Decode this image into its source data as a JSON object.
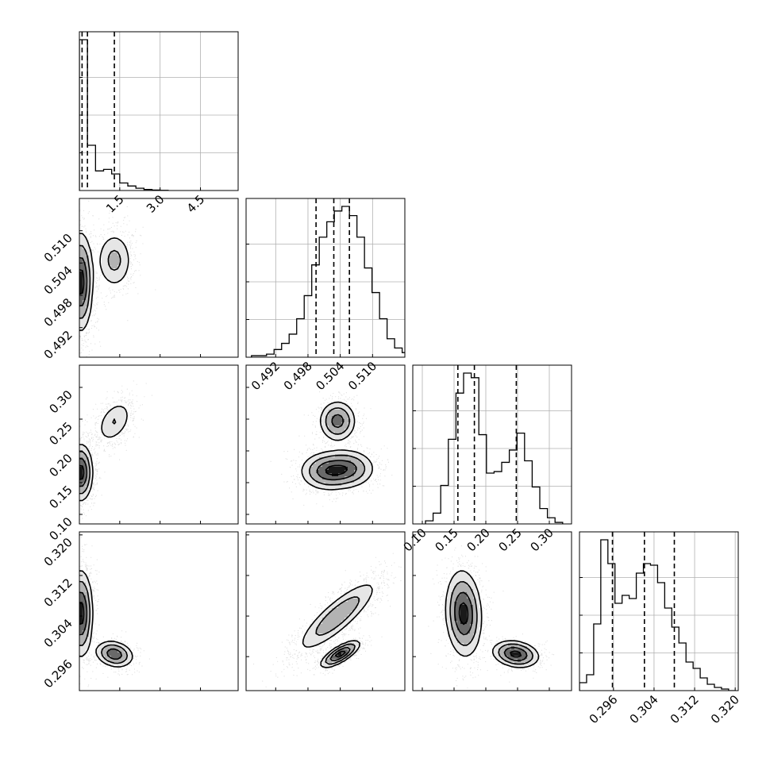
{
  "chart_data": {
    "type": "corner",
    "title": "",
    "n_params": 4,
    "params": [
      {
        "xlim": [
          0,
          5.9
        ],
        "ticks": [
          1.5,
          3.0,
          4.5
        ],
        "tick_labels": [
          "1.5",
          "3.0",
          "4.5"
        ],
        "quantiles": [
          0.1,
          0.3,
          1.3
        ]
      },
      {
        "xlim": [
          0.4865,
          0.516
        ],
        "ticks": [
          0.492,
          0.498,
          0.504,
          0.51
        ],
        "tick_labels": [
          "0.492",
          "0.498",
          "0.504",
          "0.510"
        ],
        "quantiles": [
          0.4995,
          0.5028,
          0.5057
        ]
      },
      {
        "xlim": [
          0.085,
          0.335
        ],
        "ticks": [
          0.1,
          0.15,
          0.2,
          0.25,
          0.3
        ],
        "tick_labels": [
          "0.10",
          "0.15",
          "0.20",
          "0.25",
          "0.30"
        ],
        "quantiles": [
          0.156,
          0.182,
          0.248
        ]
      },
      {
        "xlim": [
          0.2893,
          0.3206
        ],
        "ticks": [
          0.296,
          0.304,
          0.312,
          0.32
        ],
        "tick_labels": [
          "0.296",
          "0.304",
          "0.312",
          "0.320"
        ],
        "quantiles": [
          0.2958,
          0.3021,
          0.308
        ]
      }
    ],
    "histograms": [
      {
        "param": 0,
        "x": [
          0.0,
          0.3,
          0.6,
          0.9,
          1.2,
          1.5,
          1.8,
          2.1,
          2.4,
          2.7,
          3.0
        ],
        "counts": [
          100,
          30,
          13,
          14,
          11,
          5,
          3,
          1.5,
          0.7,
          0.3,
          0.1
        ]
      },
      {
        "param": 1,
        "x": [
          0.4875,
          0.4889,
          0.4903,
          0.4917,
          0.4931,
          0.4945,
          0.4959,
          0.4973,
          0.4987,
          0.5001,
          0.5015,
          0.5029,
          0.5043,
          0.5057,
          0.5071,
          0.5085,
          0.5099,
          0.5113,
          0.5127,
          0.5141,
          0.5155
        ],
        "counts": [
          1,
          1,
          2,
          5,
          9,
          15,
          25,
          40,
          60,
          78,
          88,
          95,
          98,
          92,
          78,
          58,
          42,
          25,
          12,
          6,
          3
        ]
      },
      {
        "param": 2,
        "x": [
          0.105,
          0.117,
          0.129,
          0.141,
          0.153,
          0.165,
          0.177,
          0.189,
          0.201,
          0.213,
          0.225,
          0.237,
          0.249,
          0.261,
          0.273,
          0.285,
          0.297,
          0.309
        ],
        "counts": [
          2,
          7,
          25,
          55,
          85,
          98,
          95,
          58,
          33,
          34,
          40,
          48,
          59,
          41,
          24,
          10,
          4,
          1
        ]
      },
      {
        "param": 3,
        "x": [
          0.2893,
          0.2907,
          0.2921,
          0.2935,
          0.2949,
          0.2963,
          0.2977,
          0.2991,
          0.3005,
          0.3019,
          0.3033,
          0.3047,
          0.3061,
          0.3075,
          0.3089,
          0.3103,
          0.3117,
          0.3131,
          0.3145,
          0.3159,
          0.3173,
          0.3187
        ],
        "counts": [
          5,
          10,
          42,
          95,
          80,
          55,
          60,
          58,
          74,
          80,
          79,
          68,
          52,
          40,
          30,
          18,
          14,
          8,
          4,
          2,
          1,
          0
        ]
      }
    ],
    "pairs": [
      {
        "x": 0,
        "y": 1,
        "modes": [
          {
            "cx": 0.05,
            "cy": 0.5005,
            "sx": 0.22,
            "sy": 0.0045,
            "rho": 0.0,
            "w": 0.72
          },
          {
            "cx": 1.3,
            "cy": 0.5045,
            "sx": 0.35,
            "sy": 0.0028,
            "rho": 0.0,
            "w": 0.28
          }
        ]
      },
      {
        "x": 0,
        "y": 2,
        "modes": [
          {
            "cx": 0.05,
            "cy": 0.166,
            "sx": 0.22,
            "sy": 0.022,
            "rho": 0.0,
            "w": 0.72
          },
          {
            "cx": 1.3,
            "cy": 0.246,
            "sx": 0.35,
            "sy": 0.018,
            "rho": 0.4,
            "w": 0.28
          }
        ]
      },
      {
        "x": 0,
        "y": 3,
        "modes": [
          {
            "cx": 0.05,
            "cy": 0.3045,
            "sx": 0.22,
            "sy": 0.0042,
            "rho": 0.0,
            "w": 0.72
          },
          {
            "cx": 1.3,
            "cy": 0.2965,
            "sx": 0.35,
            "sy": 0.0013,
            "rho": -0.2,
            "w": 0.28
          }
        ]
      },
      {
        "x": 1,
        "y": 2,
        "modes": [
          {
            "cx": 0.5015,
            "cy": 0.168,
            "sx": 0.0025,
            "sy": 0.015,
            "rho": 0.0,
            "w": 0.38
          },
          {
            "cx": 0.5055,
            "cy": 0.172,
            "sx": 0.0025,
            "sy": 0.015,
            "rho": 0.0,
            "w": 0.34
          },
          {
            "cx": 0.5035,
            "cy": 0.247,
            "sx": 0.0017,
            "sy": 0.016,
            "rho": 0.0,
            "w": 0.28
          }
        ]
      },
      {
        "x": 1,
        "y": 3,
        "modes": [
          {
            "cx": 0.5035,
            "cy": 0.304,
            "sx": 0.0038,
            "sy": 0.0036,
            "rho": 0.85,
            "w": 0.72
          },
          {
            "cx": 0.504,
            "cy": 0.2965,
            "sx": 0.0018,
            "sy": 0.0013,
            "rho": 0.75,
            "w": 0.28
          }
        ]
      },
      {
        "x": 2,
        "y": 3,
        "modes": [
          {
            "cx": 0.165,
            "cy": 0.3045,
            "sx": 0.014,
            "sy": 0.0042,
            "rho": -0.1,
            "w": 0.72
          },
          {
            "cx": 0.247,
            "cy": 0.2965,
            "sx": 0.018,
            "sy": 0.0013,
            "rho": -0.2,
            "w": 0.28
          }
        ]
      }
    ],
    "contour_levels": [
      "0.5-sigma",
      "1-sigma",
      "1.5-sigma",
      "2-sigma"
    ],
    "colors": {
      "line": "#000000",
      "grid": "#b0b0b0",
      "frame": "#000000",
      "points": "#000000"
    },
    "grid": true,
    "quantile_line_style": "dashed"
  }
}
